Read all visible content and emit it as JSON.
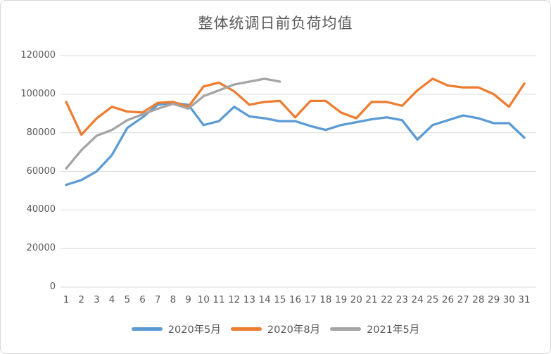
{
  "chart_data": {
    "type": "line",
    "title": "整体统调日前负荷均值",
    "xlabel": "",
    "ylabel": "",
    "x": [
      1,
      2,
      3,
      4,
      5,
      6,
      7,
      8,
      9,
      10,
      11,
      12,
      13,
      14,
      15,
      16,
      17,
      18,
      19,
      20,
      21,
      22,
      23,
      24,
      25,
      26,
      27,
      28,
      29,
      30,
      31
    ],
    "series": [
      {
        "name": "2020年5月",
        "color": "#5B9BD5",
        "values": [
          53000,
          55500,
          60000,
          68500,
          82500,
          88000,
          94500,
          95500,
          94500,
          84000,
          86000,
          93500,
          88500,
          87500,
          86000,
          86000,
          83500,
          81500,
          84000,
          85500,
          87000,
          88000,
          86500,
          76500,
          84000,
          86500,
          89000,
          87500,
          85000,
          85000,
          77500
        ]
      },
      {
        "name": "2020年8月",
        "color": "#ED7D31",
        "values": [
          96000,
          79000,
          87500,
          93500,
          91000,
          90500,
          95500,
          96000,
          93500,
          104000,
          106000,
          101500,
          94500,
          96000,
          96500,
          88000,
          96500,
          96500,
          90500,
          87500,
          96000,
          96000,
          94000,
          102000,
          108000,
          104500,
          103500,
          103500,
          100000,
          93500,
          105500
        ]
      },
      {
        "name": "2021年5月",
        "color": "#A5A5A5",
        "values": [
          61500,
          71000,
          78500,
          81500,
          86500,
          89500,
          92500,
          95000,
          92500,
          99000,
          102000,
          105000,
          106500,
          108000,
          106500
        ]
      }
    ],
    "ylim": [
      0,
      120000
    ],
    "yticks": [
      0,
      20000,
      40000,
      60000,
      80000,
      100000,
      120000
    ],
    "grid": true,
    "legend_position": "bottom",
    "gridline_color": "#D9D9D9",
    "text_color": "#595959"
  }
}
